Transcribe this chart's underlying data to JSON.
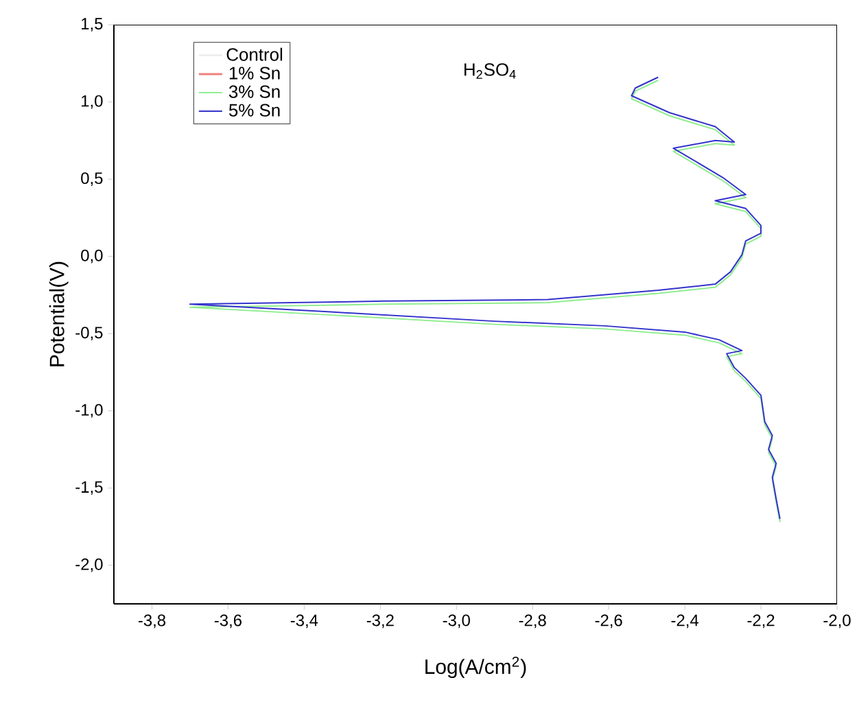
{
  "chart_data": {
    "type": "line",
    "xlabel": "Log(A/cm$^{2}$)",
    "ylabel": "Potential(V)",
    "annotations": [
      "H$_{2}$SO$_{4}$"
    ],
    "xlim": [
      -3.9,
      -2.0
    ],
    "ylim": [
      -2.25,
      1.5
    ],
    "xticks": [
      {
        "value": -3.8,
        "label": "-3,8"
      },
      {
        "value": -3.6,
        "label": "-3,6"
      },
      {
        "value": -3.4,
        "label": "-3,4"
      },
      {
        "value": -3.2,
        "label": "-3,2"
      },
      {
        "value": -3.0,
        "label": "-3,0"
      },
      {
        "value": -2.8,
        "label": "-2,8"
      },
      {
        "value": -2.6,
        "label": "-2,6"
      },
      {
        "value": -2.4,
        "label": "-2,4"
      },
      {
        "value": -2.2,
        "label": "-2,2"
      },
      {
        "value": -2.0,
        "label": "-2,0"
      }
    ],
    "yticks": [
      {
        "value": -2.0,
        "label": "-2,0"
      },
      {
        "value": -1.5,
        "label": "-1,5"
      },
      {
        "value": -1.0,
        "label": "-1,0"
      },
      {
        "value": -0.5,
        "label": "-0,5"
      },
      {
        "value": 0.0,
        "label": "0,0"
      },
      {
        "value": 0.5,
        "label": "0,5"
      },
      {
        "value": 1.0,
        "label": "1,0"
      },
      {
        "value": 1.5,
        "label": "1,5"
      }
    ],
    "legend": "top left",
    "grid": false,
    "marker": "none",
    "line_style": "solid",
    "x": [
      -2.15,
      -2.16,
      -2.17,
      -2.16,
      -2.18,
      -2.17,
      -2.19,
      -2.2,
      -2.24,
      -2.27,
      -2.29,
      -2.25,
      -2.31,
      -2.4,
      -2.61,
      -2.9,
      -3.33,
      -3.7,
      -3.19,
      -2.76,
      -2.47,
      -2.32,
      -2.28,
      -2.25,
      -2.24,
      -2.2,
      -2.2,
      -2.24,
      -2.32,
      -2.24,
      -2.3,
      -2.43,
      -2.32,
      -2.27,
      -2.32,
      -2.44,
      -2.54,
      -2.53,
      -2.47
    ],
    "series": [
      {
        "name": "Control",
        "color": "#eeeeee",
        "values": [
          null,
          null,
          null,
          null,
          null,
          null,
          null,
          null,
          null,
          null,
          null,
          null,
          null,
          null,
          null,
          null,
          null,
          null,
          null,
          null,
          null,
          null,
          null,
          null,
          null,
          null,
          null,
          null,
          null,
          null,
          null,
          null,
          null,
          null,
          null,
          null,
          null,
          null,
          null
        ]
      },
      {
        "name": "1% Sn",
        "color": "#f08080",
        "values": [
          null,
          null,
          null,
          null,
          null,
          null,
          null,
          null,
          null,
          null,
          null,
          null,
          null,
          null,
          null,
          null,
          null,
          null,
          null,
          null,
          null,
          null,
          null,
          null,
          null,
          null,
          null,
          null,
          null,
          null,
          null,
          null,
          null,
          null,
          null,
          null,
          null,
          null,
          null
        ]
      },
      {
        "name": "3% Sn",
        "color": "#90ee90",
        "values": [
          -1.72,
          -1.59,
          -1.45,
          -1.36,
          -1.27,
          -1.18,
          -1.09,
          -0.92,
          -0.81,
          -0.74,
          -0.65,
          -0.63,
          -0.56,
          -0.51,
          -0.47,
          -0.44,
          -0.38,
          -0.33,
          -0.31,
          -0.3,
          -0.24,
          -0.2,
          -0.12,
          -0.01,
          0.08,
          0.13,
          0.18,
          0.29,
          0.34,
          0.38,
          0.49,
          0.68,
          0.73,
          0.72,
          0.82,
          0.91,
          1.02,
          1.07,
          1.14
        ]
      },
      {
        "name": "5% Sn",
        "color": "#3333cc",
        "values": [
          -1.7,
          -1.57,
          -1.43,
          -1.34,
          -1.25,
          -1.16,
          -1.07,
          -0.9,
          -0.79,
          -0.72,
          -0.63,
          -0.61,
          -0.54,
          -0.49,
          -0.45,
          -0.42,
          -0.36,
          -0.31,
          -0.29,
          -0.28,
          -0.22,
          -0.18,
          -0.1,
          0.01,
          0.1,
          0.15,
          0.2,
          0.31,
          0.36,
          0.4,
          0.51,
          0.7,
          0.75,
          0.74,
          0.84,
          0.93,
          1.04,
          1.09,
          1.16
        ]
      }
    ]
  }
}
